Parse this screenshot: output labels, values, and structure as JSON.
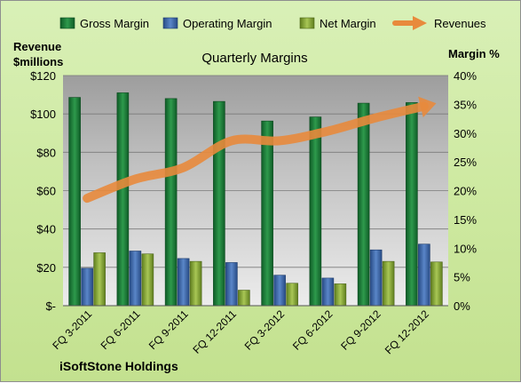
{
  "chart_data": {
    "type": "bar",
    "title": "Quarterly Margins",
    "company": "iSoftStone Holdings",
    "categories": [
      "FQ 3-2011",
      "FQ 6-2011",
      "FQ 9-2011",
      "FQ 12-2011",
      "FQ 3-2012",
      "FQ 6-2012",
      "FQ 9-2012",
      "FQ 12-2012"
    ],
    "series": [
      {
        "name": "Gross Margin",
        "axis": "right",
        "color": "#1e7a3a",
        "values": [
          36.2,
          37.0,
          36.0,
          35.5,
          32.1,
          32.8,
          35.2,
          35.3
        ]
      },
      {
        "name": "Operating Margin",
        "axis": "right",
        "color": "#3e66a6",
        "values": [
          6.5,
          9.5,
          8.2,
          7.5,
          5.3,
          4.8,
          9.7,
          10.7
        ]
      },
      {
        "name": "Net Margin",
        "axis": "right",
        "color": "#8cae3c",
        "values": [
          9.2,
          9.0,
          7.7,
          2.7,
          3.9,
          3.8,
          7.7,
          7.6
        ]
      },
      {
        "name": "Revenues",
        "axis": "left",
        "type": "line",
        "color": "#e88a3c",
        "values": [
          56,
          66,
          72,
          86,
          86,
          91,
          98,
          104
        ]
      }
    ],
    "y_left": {
      "label_line1": "Revenue",
      "label_line2": "$millions",
      "range": [
        0,
        120
      ],
      "ticks": [
        0,
        20,
        40,
        60,
        80,
        100,
        120
      ],
      "tick_labels": [
        "$-",
        "$20",
        "$40",
        "$60",
        "$80",
        "$100",
        "$120"
      ]
    },
    "y_right": {
      "label": "Margin %",
      "range": [
        0,
        40
      ],
      "ticks": [
        0,
        5,
        10,
        15,
        20,
        25,
        30,
        35,
        40
      ],
      "tick_labels": [
        "0%",
        "5%",
        "10%",
        "15%",
        "20%",
        "25%",
        "30%",
        "35%",
        "40%"
      ]
    },
    "legend": {
      "position": "top"
    },
    "grid": true
  }
}
